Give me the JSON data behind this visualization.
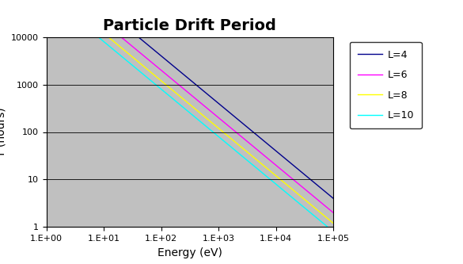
{
  "title": "Particle Drift Period",
  "xlabel": "Energy (eV)",
  "ylabel": "T (hours)",
  "background_color": "#c0c0c0",
  "figure_bg": "#ffffff",
  "xlim": [
    1.0,
    100000.0
  ],
  "ylim": [
    1.0,
    10000.0
  ],
  "lines": [
    {
      "label": "L=4",
      "color": "#00008B",
      "A": 400000.0,
      "slope": -1.0
    },
    {
      "label": "L=6",
      "color": "#ff00ff",
      "A": 200000.0,
      "slope": -1.0
    },
    {
      "label": "L=8",
      "color": "#ffff00",
      "A": 120000.0,
      "slope": -1.0
    },
    {
      "label": "L=10",
      "color": "#00ffff",
      "A": 80000.0,
      "slope": -1.0
    }
  ],
  "xtick_labels": [
    "1.E+00",
    "1.E+01",
    "1.E+02",
    "1.E+03",
    "1.E+04",
    "1.E+05"
  ],
  "xtick_values": [
    1.0,
    10.0,
    100.0,
    1000.0,
    10000.0,
    100000.0
  ],
  "ytick_labels": [
    "1",
    "10",
    "100",
    "1000",
    "10000"
  ],
  "ytick_values": [
    1.0,
    10.0,
    100.0,
    1000.0,
    10000.0
  ],
  "title_fontsize": 14,
  "axis_label_fontsize": 10,
  "tick_fontsize": 8,
  "legend_fontsize": 9,
  "linewidth": 1.0
}
